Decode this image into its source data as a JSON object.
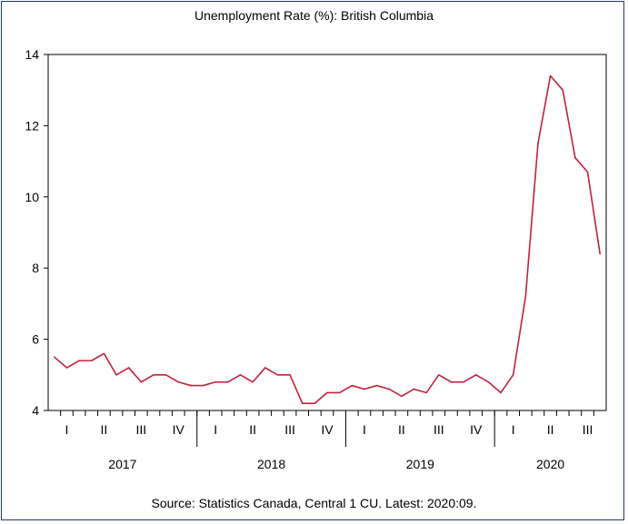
{
  "chart_data": {
    "type": "line",
    "title": "Unemployment Rate (%): British Columbia",
    "xlabel": "",
    "ylabel": "",
    "ylim": [
      4,
      14
    ],
    "yticks": [
      4,
      6,
      8,
      10,
      12,
      14
    ],
    "grid": false,
    "x_start": "2017:01",
    "x_end": "2020:09",
    "quarter_labels": [
      "I",
      "II",
      "III",
      "IV",
      "I",
      "II",
      "III",
      "IV",
      "I",
      "II",
      "III",
      "IV",
      "I",
      "II",
      "III"
    ],
    "year_labels": [
      "2017",
      "2018",
      "2019",
      "2020"
    ],
    "series": [
      {
        "color": "#c4213c",
        "values": [
          5.5,
          5.2,
          5.4,
          5.4,
          5.6,
          5.0,
          5.2,
          4.8,
          5.0,
          5.0,
          4.8,
          4.7,
          4.7,
          4.8,
          4.8,
          5.0,
          4.8,
          5.2,
          5.0,
          5.0,
          4.2,
          4.2,
          4.5,
          4.5,
          4.7,
          4.6,
          4.7,
          4.6,
          4.4,
          4.6,
          4.5,
          5.0,
          4.8,
          4.8,
          5.0,
          4.8,
          4.5,
          5.0,
          7.2,
          11.5,
          13.4,
          13.0,
          11.1,
          10.7,
          8.4
        ]
      }
    ]
  },
  "source_note": "Source: Statistics Canada, Central 1 CU. Latest: 2020:09."
}
